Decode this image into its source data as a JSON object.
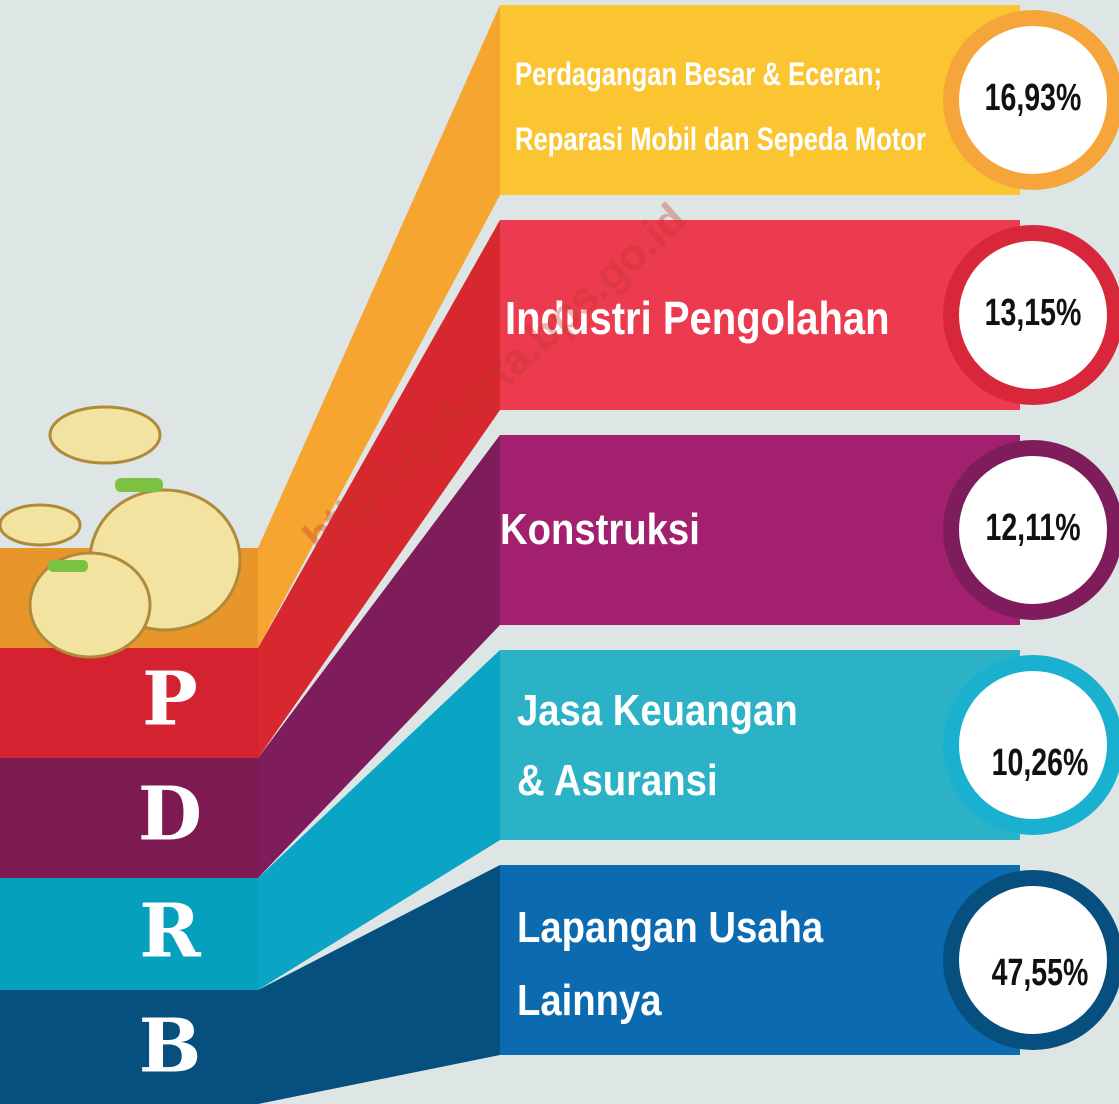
{
  "watermark": "https://jakarta.bps.go.id",
  "letters": [
    "P",
    "D",
    "R",
    "B"
  ],
  "items": [
    {
      "label": [
        "Perdagangan Besar & Eceran;",
        "Reparasi Mobil dan Sepeda Motor"
      ],
      "value": "16,93%"
    },
    {
      "label": [
        "Industri Pengolahan"
      ],
      "value": "13,15%"
    },
    {
      "label": [
        "Konstruksi"
      ],
      "value": "12,11%"
    },
    {
      "label": [
        "Jasa Keuangan",
        "& Asuransi"
      ],
      "value": "10,26%"
    },
    {
      "label": [
        "Lapangan Usaha",
        "Lainnya"
      ],
      "value": "47,55%"
    }
  ]
}
